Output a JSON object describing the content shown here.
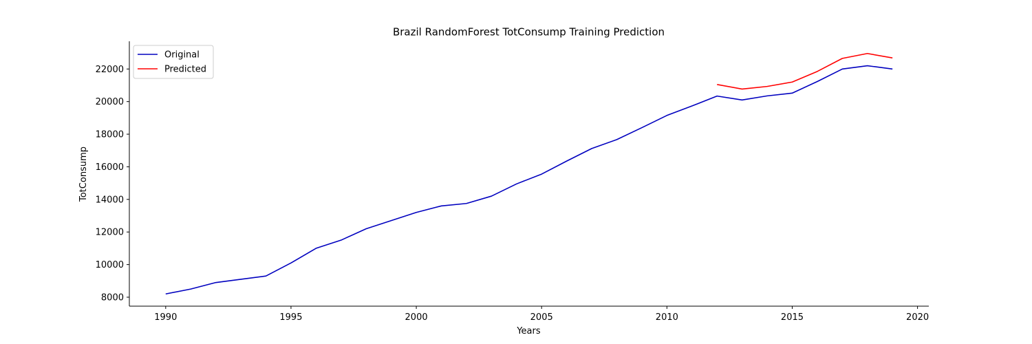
{
  "chart_data": {
    "type": "line",
    "title": "Brazil RandomForest TotConsump Training Prediction",
    "xlabel": "Years",
    "ylabel": "TotConsump",
    "xlim": [
      1988.55,
      2020.45
    ],
    "ylim": [
      7450,
      23700
    ],
    "xticks": [
      1990,
      1995,
      2000,
      2005,
      2010,
      2015,
      2020
    ],
    "yticks": [
      8000,
      10000,
      12000,
      14000,
      16000,
      18000,
      20000,
      22000
    ],
    "grid": false,
    "legend_position": "upper-left",
    "series": [
      {
        "name": "Original",
        "color": "#0000bf",
        "x": [
          1990,
          1991,
          1992,
          1993,
          1994,
          1995,
          1996,
          1997,
          1998,
          1999,
          2000,
          2001,
          2002,
          2003,
          2004,
          2005,
          2006,
          2007,
          2008,
          2009,
          2010,
          2011,
          2012,
          2013,
          2014,
          2015,
          2016,
          2017,
          2018,
          2019
        ],
        "y": [
          8200,
          8500,
          8900,
          9100,
          9300,
          10100,
          11000,
          11500,
          12200,
          12700,
          13200,
          13600,
          13750,
          14200,
          14950,
          15550,
          16350,
          17120,
          17670,
          18400,
          19150,
          19730,
          20340,
          20100,
          20350,
          20520,
          21230,
          22000,
          22200,
          22000
        ]
      },
      {
        "name": "Predicted",
        "color": "#ff0000",
        "x": [
          2012,
          2013,
          2014,
          2015,
          2016,
          2017,
          2018,
          2019
        ],
        "y": [
          21050,
          20770,
          20930,
          21200,
          21850,
          22650,
          22950,
          22680
        ]
      }
    ]
  }
}
